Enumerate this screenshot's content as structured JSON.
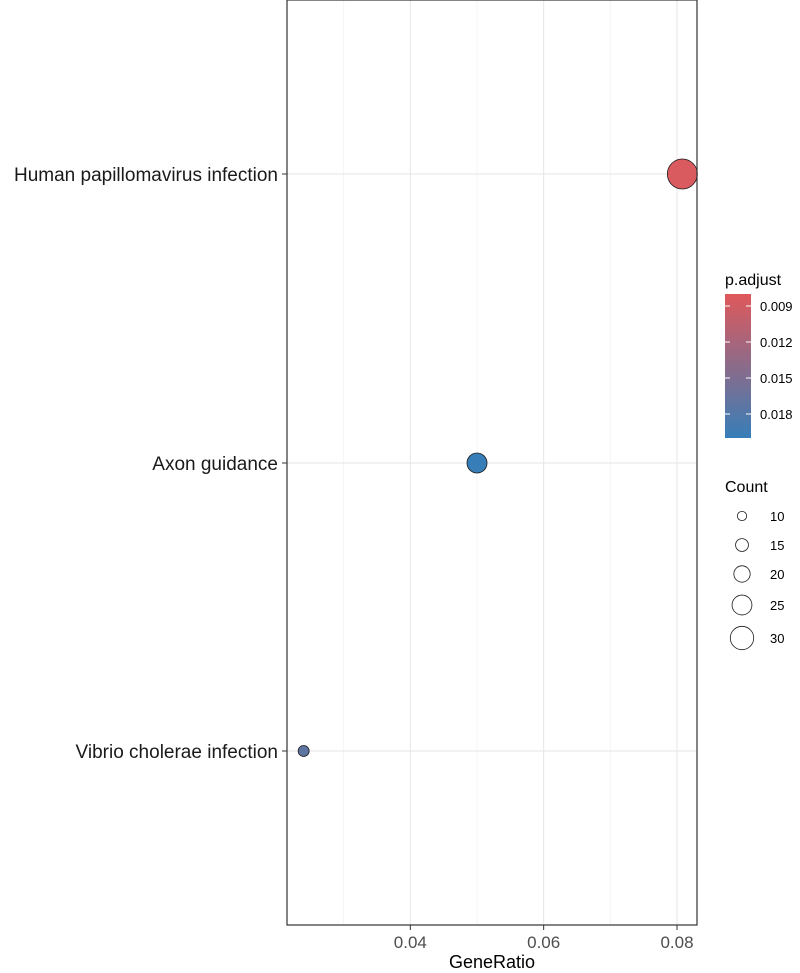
{
  "chart_data": {
    "type": "scatter",
    "title": "",
    "xlabel": "GeneRatio",
    "ylabel": "",
    "xlim": [
      0.0215,
      0.083
    ],
    "xticks": [
      0.04,
      0.06,
      0.08
    ],
    "xtick_labels": [
      "0.04",
      "0.06",
      "0.08"
    ],
    "grid": true,
    "categories": [
      "Human papillomavirus infection",
      "Axon guidance",
      "Vibrio cholerae infection"
    ],
    "points": [
      {
        "category": "Human papillomavirus infection",
        "x": 0.0808,
        "count": 30,
        "p_adjust": 0.0085
      },
      {
        "category": "Axon guidance",
        "x": 0.05,
        "count": 19,
        "p_adjust": 0.02
      },
      {
        "category": "Vibrio cholerae infection",
        "x": 0.024,
        "count": 9,
        "p_adjust": 0.0172
      }
    ],
    "color_legend": {
      "title": "p.adjust",
      "range": [
        0.008,
        0.02
      ],
      "ticks": [
        0.009,
        0.012,
        0.015,
        0.018
      ],
      "tick_labels": [
        "0.009",
        "0.012",
        "0.015",
        "0.018"
      ],
      "low_color": "#E0585B",
      "high_color": "#377EB8"
    },
    "size_legend": {
      "title": "Count",
      "values": [
        10,
        15,
        20,
        25,
        30
      ],
      "labels": [
        "10",
        "15",
        "20",
        "25",
        "30"
      ]
    },
    "legend_position": "right"
  }
}
